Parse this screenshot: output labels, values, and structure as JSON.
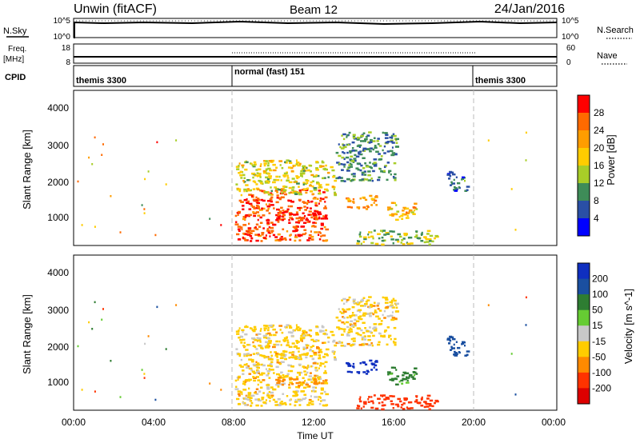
{
  "header": {
    "radar": "Unwin (fitACF)",
    "beam": "Beam 12",
    "date": "24/Jan/2016"
  },
  "top_panels": {
    "nsky_label": "N.Sky",
    "nsky_ticks": [
      "10^5",
      "10^0"
    ],
    "nsearch_label": "N.Search",
    "nsearch_ticks": [
      "10^5",
      "10^0"
    ],
    "freq_label": "Freq.",
    "freq_unit": "[MHz]",
    "freq_ticks": [
      "18",
      "8"
    ],
    "nave_label": "Nave",
    "nave_ticks": [
      "60",
      "0"
    ],
    "cpid_label": "CPID",
    "cpid_segments": [
      {
        "label": "themis 3300",
        "start_hour": 0,
        "end_hour": 8
      },
      {
        "label": "normal (fast) 151",
        "start_hour": 8,
        "end_hour": 20
      },
      {
        "label": "themis 3300",
        "start_hour": 20,
        "end_hour": 24
      }
    ]
  },
  "panels": [
    {
      "id": "power",
      "ylabel": "Slant Range [km]",
      "yticks": [
        "4000",
        "3000",
        "2000",
        "1000"
      ],
      "colorbar_label": "Power [dB]",
      "colorbar_ticks": [
        "28",
        "24",
        "20",
        "16",
        "12",
        "8",
        "4"
      ],
      "colorbar_colors": [
        "#ff0000",
        "#ff6a00",
        "#ff9d00",
        "#ffcc00",
        "#a8cd28",
        "#3e8c58",
        "#2a4fa5",
        "#0000ff"
      ]
    },
    {
      "id": "velocity",
      "ylabel": "Slant Range [km]",
      "yticks": [
        "4000",
        "3000",
        "2000",
        "1000"
      ],
      "colorbar_label": "Velocity [m s^-1]",
      "colorbar_ticks": [
        "200",
        "100",
        "50",
        "15",
        "-15",
        "-50",
        "-100",
        "-200"
      ],
      "colorbar_colors": [
        "#0f2fc0",
        "#1a4fa0",
        "#2e7d32",
        "#66cc33",
        "#c8c8c8",
        "#ffcc00",
        "#ff8a00",
        "#ff3300",
        "#dd0000"
      ]
    }
  ],
  "x_axis": {
    "label": "Time UT",
    "ticks": [
      "00:00",
      "04:00",
      "08:00",
      "12:00",
      "16:00",
      "20:00",
      "00:00"
    ]
  },
  "chart_data": {
    "type": "heatmap",
    "title": "Unwin (fitACF)  Beam 12  24/Jan/2016",
    "xlabel": "Time UT",
    "ylabel": "Slant Range [km]",
    "x_range_hours": [
      0,
      24
    ],
    "y_range_km": [
      180,
      4600
    ],
    "mode_change_hours": [
      8,
      20
    ],
    "scatter_regions": [
      {
        "t_start": 8.0,
        "t_end": 12.5,
        "range_start": 300,
        "range_end": 1800,
        "power_db": 26,
        "velocity": -15
      },
      {
        "t_start": 10.0,
        "t_end": 12.5,
        "range_start": 850,
        "range_end": 1100,
        "power_db": 28,
        "velocity": -50
      },
      {
        "t_start": 8.0,
        "t_end": 13.0,
        "range_start": 1600,
        "range_end": 2600,
        "power_db": 14,
        "velocity": -15
      },
      {
        "t_start": 13.5,
        "t_end": 15.0,
        "range_start": 1200,
        "range_end": 1600,
        "power_db": 20,
        "velocity": 200
      },
      {
        "t_start": 15.5,
        "t_end": 17.0,
        "range_start": 900,
        "range_end": 1400,
        "power_db": 18,
        "velocity": 50
      },
      {
        "t_start": 14.0,
        "t_end": 18.0,
        "range_start": 200,
        "range_end": 600,
        "power_db": 12,
        "velocity": -100
      },
      {
        "t_start": 13.0,
        "t_end": 16.0,
        "range_start": 2000,
        "range_end": 3400,
        "power_db": 8,
        "velocity": -15
      },
      {
        "t_start": 18.5,
        "t_end": 19.5,
        "range_start": 1700,
        "range_end": 2300,
        "power_db": 6,
        "velocity": 100
      }
    ]
  }
}
